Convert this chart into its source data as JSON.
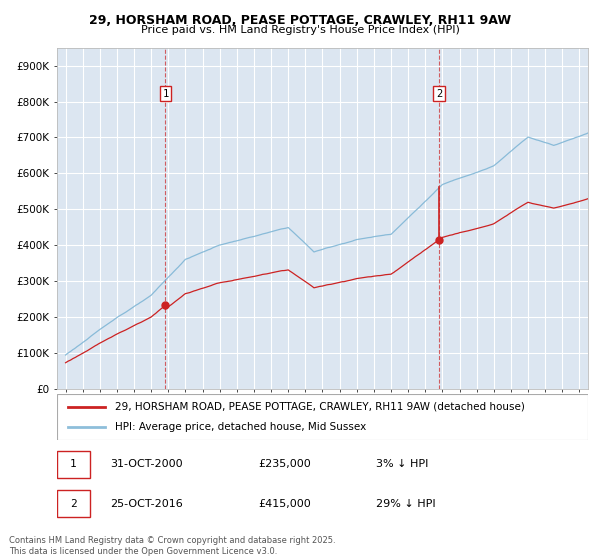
{
  "title_line1": "29, HORSHAM ROAD, PEASE POTTAGE, CRAWLEY, RH11 9AW",
  "title_line2": "Price paid vs. HM Land Registry's House Price Index (HPI)",
  "background_color": "#ffffff",
  "plot_bg_color": "#dce6f1",
  "grid_color": "#ffffff",
  "sale1_date": 2000.83,
  "sale1_price": 235000,
  "sale2_date": 2016.81,
  "sale2_price": 415000,
  "legend_entry1": "29, HORSHAM ROAD, PEASE POTTAGE, CRAWLEY, RH11 9AW (detached house)",
  "legend_entry2": "HPI: Average price, detached house, Mid Sussex",
  "footer": "Contains HM Land Registry data © Crown copyright and database right 2025.\nThis data is licensed under the Open Government Licence v3.0.",
  "ylim": [
    0,
    950000
  ],
  "xlim_start": 1994.5,
  "xlim_end": 2025.5,
  "hpi_color": "#7ab3d4",
  "price_color": "#cc2222",
  "vline_color": "#cc2222",
  "title_fontsize": 9.0,
  "subtitle_fontsize": 8.0
}
